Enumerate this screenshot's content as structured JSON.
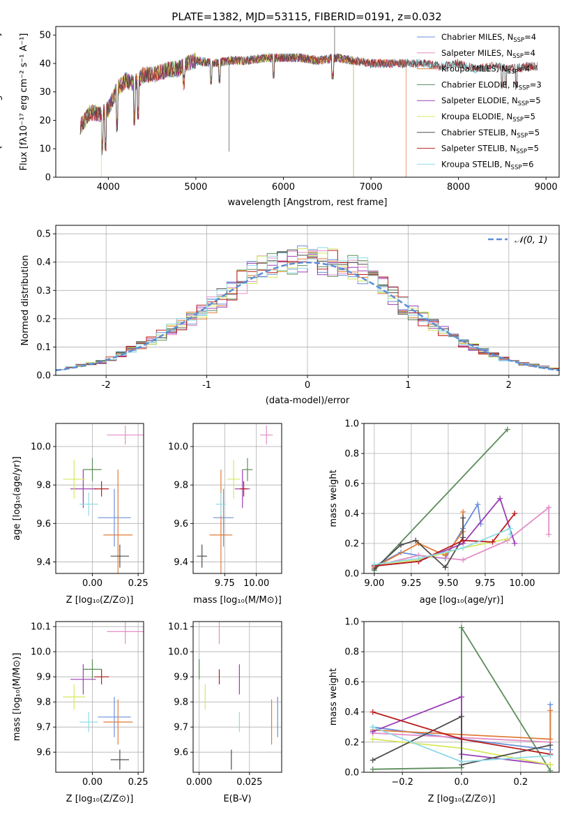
{
  "title": "PLATE=1382, MJD=53115, FIBERID=0191, z=0.032",
  "colors": {
    "Chabrier MILES": "#6a8fd8",
    "Salpeter MILES": "#e38ec6",
    "Kroupa MILES": "#e07b39",
    "Chabrier ELODIE": "#5b8c5a",
    "Salpeter ELODIE": "#9b3fb5",
    "Kroupa ELODIE": "#d6e85c",
    "Chabrier STELIB": "#4d4d4d",
    "Salpeter STELIB": "#b81c1c",
    "Kroupa STELIB": "#8fdbe6"
  },
  "chart_data": [
    {
      "type": "line",
      "panel": "spectrum",
      "title": "PLATE=1382, MJD=53115, FIBERID=0191, z=0.032",
      "xlabel": "wavelength [Angstrom, rest frame]",
      "ylabel": "Flux [fλ10⁻¹⁷ erg cm⁻² s⁻¹ A⁻¹]",
      "xlim": [
        3400,
        9150
      ],
      "ylim": [
        0,
        53
      ],
      "xticks": [
        4000,
        5000,
        6000,
        7000,
        8000,
        9000
      ],
      "yticks": [
        0,
        10,
        20,
        30,
        40,
        50
      ],
      "legend_position": "top-right",
      "legend": [
        {
          "base": "Chabrier MILES, N",
          "sub": "SSP",
          "tail": "=4"
        },
        {
          "base": "Salpeter MILES, N",
          "sub": "SSP",
          "tail": "=4"
        },
        {
          "base": "Kroupa MILES, N",
          "sub": "SSP",
          "tail": "=4"
        },
        {
          "base": "Chabrier ELODIE, N",
          "sub": "SSP",
          "tail": "=3"
        },
        {
          "base": "Salpeter ELODIE, N",
          "sub": "SSP",
          "tail": "=5"
        },
        {
          "base": "Kroupa ELODIE, N",
          "sub": "SSP",
          "tail": "=5"
        },
        {
          "base": "Chabrier STELIB, N",
          "sub": "SSP",
          "tail": "=5"
        },
        {
          "base": "Salpeter STELIB, N",
          "sub": "SSP",
          "tail": "=5"
        },
        {
          "base": "Kroupa STELIB, N",
          "sub": "SSP",
          "tail": "=6"
        }
      ],
      "continuum": {
        "x": [
          3680,
          3800,
          3900,
          4000,
          4100,
          4200,
          4300,
          4400,
          4500,
          4600,
          4700,
          4800,
          4900,
          5000,
          5200,
          5400,
          5600,
          5800,
          6000,
          6200,
          6400,
          6600,
          6800,
          7000,
          7200,
          7400,
          7600,
          7800,
          8000,
          8200,
          8400,
          8600,
          8800,
          8900
        ],
        "y": [
          18,
          23,
          22,
          24,
          31,
          34,
          33,
          36,
          36,
          37,
          38,
          38,
          40,
          41,
          40,
          41,
          41,
          42,
          42,
          42,
          41,
          42,
          41,
          40,
          40,
          40,
          40,
          39,
          40,
          38,
          39,
          38,
          39,
          39
        ]
      },
      "spectrum_ranges": {
        "MILES": [
          3680,
          7400
        ],
        "ELODIE": [
          3680,
          6800
        ],
        "STELIB": [
          3680,
          8900
        ]
      }
    },
    {
      "type": "bar",
      "panel": "residual-histogram",
      "xlabel": "(data-model)/error",
      "ylabel": "Normed distribution",
      "xlim": [
        -2.5,
        2.5
      ],
      "ylim": [
        0,
        0.53
      ],
      "xticks": [
        -2,
        -1,
        0,
        1,
        2
      ],
      "yticks": [
        0.0,
        0.1,
        0.2,
        0.3,
        0.4,
        0.5
      ],
      "legend_position": "top-right",
      "legend": [
        "𝒩(0, 1)"
      ],
      "reference_curve": {
        "name": "𝒩(0, 1)",
        "mean": 0,
        "sigma": 1,
        "style": "dashed"
      },
      "bin_width": 0.1,
      "histogram_envelope": {
        "x": [
          -2.5,
          -2.0,
          -1.5,
          -1.0,
          -0.5,
          0.0,
          0.5,
          1.0,
          1.5,
          2.0,
          2.5
        ],
        "y": [
          0.02,
          0.05,
          0.13,
          0.23,
          0.37,
          0.41,
          0.38,
          0.23,
          0.12,
          0.05,
          0.02
        ]
      }
    },
    {
      "type": "scatter",
      "panel": "age-vs-Z",
      "xlabel": "Z [log₁₀(Z/Z⊙)]",
      "ylabel": "age  [log₁₀(age/yr)]",
      "xlim": [
        -0.2,
        0.28
      ],
      "ylim": [
        9.34,
        10.12
      ],
      "xticks": [
        0.0,
        0.25
      ],
      "xticklabels": [
        "0.00",
        "0.25"
      ],
      "yticks": [
        9.4,
        9.6,
        9.8,
        10.0
      ],
      "points": [
        {
          "model": "Chabrier MILES",
          "x": 0.12,
          "y": 9.63,
          "xerr": 0.09,
          "yerr": 0.15
        },
        {
          "model": "Salpeter MILES",
          "x": 0.18,
          "y": 10.06,
          "xerr": 0.1,
          "yerr": 0.05
        },
        {
          "model": "Kroupa MILES",
          "x": 0.14,
          "y": 9.54,
          "xerr": 0.08,
          "yerr": 0.34
        },
        {
          "model": "Chabrier ELODIE",
          "x": 0.0,
          "y": 9.88,
          "xerr": 0.05,
          "yerr": 0.06
        },
        {
          "model": "Salpeter ELODIE",
          "x": -0.05,
          "y": 9.78,
          "xerr": 0.07,
          "yerr": 0.1
        },
        {
          "model": "Kroupa ELODIE",
          "x": -0.1,
          "y": 9.83,
          "xerr": 0.06,
          "yerr": 0.1
        },
        {
          "model": "Chabrier STELIB",
          "x": 0.15,
          "y": 9.43,
          "xerr": 0.05,
          "yerr": 0.06
        },
        {
          "model": "Salpeter STELIB",
          "x": 0.05,
          "y": 9.78,
          "xerr": 0.04,
          "yerr": 0.04
        },
        {
          "model": "Kroupa STELIB",
          "x": -0.02,
          "y": 9.7,
          "xerr": 0.05,
          "yerr": 0.06
        }
      ]
    },
    {
      "type": "scatter",
      "panel": "age-vs-mass",
      "xlabel": "mass [log₁₀(M/M⊙)]",
      "xlim": [
        9.5,
        10.2
      ],
      "ylim": [
        9.34,
        10.12
      ],
      "xticks": [
        9.75,
        10.0
      ],
      "xticklabels": [
        "9.75",
        "10.00"
      ],
      "yticks": [
        9.4,
        9.6,
        9.8,
        10.0
      ],
      "points": [
        {
          "model": "Chabrier MILES",
          "x": 9.74,
          "y": 9.63,
          "xerr": 0.08,
          "yerr": 0.15
        },
        {
          "model": "Salpeter MILES",
          "x": 10.08,
          "y": 10.06,
          "xerr": 0.05,
          "yerr": 0.05
        },
        {
          "model": "Kroupa MILES",
          "x": 9.72,
          "y": 9.54,
          "xerr": 0.09,
          "yerr": 0.34
        },
        {
          "model": "Chabrier ELODIE",
          "x": 9.93,
          "y": 9.88,
          "xerr": 0.04,
          "yerr": 0.06
        },
        {
          "model": "Salpeter ELODIE",
          "x": 9.89,
          "y": 9.78,
          "xerr": 0.06,
          "yerr": 0.1
        },
        {
          "model": "Kroupa ELODIE",
          "x": 9.82,
          "y": 9.83,
          "xerr": 0.05,
          "yerr": 0.1
        },
        {
          "model": "Chabrier STELIB",
          "x": 9.57,
          "y": 9.43,
          "xerr": 0.04,
          "yerr": 0.06
        },
        {
          "model": "Salpeter STELIB",
          "x": 9.9,
          "y": 9.78,
          "xerr": 0.03,
          "yerr": 0.04
        },
        {
          "model": "Kroupa STELIB",
          "x": 9.72,
          "y": 9.7,
          "xerr": 0.04,
          "yerr": 0.06
        }
      ]
    },
    {
      "type": "line",
      "panel": "mass-weight-vs-age",
      "xlabel": "age  [log₁₀(age/yr)]",
      "ylabel": "mass weight",
      "xlim": [
        8.93,
        10.25
      ],
      "ylim": [
        0,
        1.0
      ],
      "xticks": [
        9.0,
        9.25,
        9.5,
        9.75,
        10.0
      ],
      "xticklabels": [
        "9.00",
        "9.25",
        "9.50",
        "9.75",
        "10.00"
      ],
      "yticks": [
        0.0,
        0.2,
        0.4,
        0.6,
        0.8,
        1.0
      ],
      "series": [
        {
          "model": "Chabrier MILES",
          "x": [
            9.0,
            9.18,
            9.3,
            9.48,
            9.6,
            9.7,
            9.72
          ],
          "y": [
            0.05,
            0.14,
            0.12,
            0.1,
            0.3,
            0.46,
            0.33
          ]
        },
        {
          "model": "Salpeter MILES",
          "x": [
            9.0,
            9.3,
            9.6,
            9.9,
            10.18,
            10.18
          ],
          "y": [
            0.05,
            0.12,
            0.09,
            0.22,
            0.44,
            0.26
          ]
        },
        {
          "model": "Kroupa MILES",
          "x": [
            9.0,
            9.3,
            9.48,
            9.6,
            9.6
          ],
          "y": [
            0.04,
            0.2,
            0.12,
            0.28,
            0.41
          ]
        },
        {
          "model": "Chabrier ELODIE",
          "x": [
            9.0,
            9.9
          ],
          "y": [
            0.02,
            0.96
          ]
        },
        {
          "model": "Salpeter ELODIE",
          "x": [
            9.0,
            9.3,
            9.6,
            9.85,
            9.95
          ],
          "y": [
            0.05,
            0.08,
            0.2,
            0.5,
            0.2
          ]
        },
        {
          "model": "Kroupa ELODIE",
          "x": [
            9.0,
            9.3,
            9.6,
            9.9
          ],
          "y": [
            0.06,
            0.09,
            0.17,
            0.23
          ]
        },
        {
          "model": "Chabrier STELIB",
          "x": [
            9.0,
            9.18,
            9.28,
            9.48,
            9.6,
            9.6
          ],
          "y": [
            0.03,
            0.19,
            0.22,
            0.04,
            0.24,
            0.37
          ]
        },
        {
          "model": "Salpeter STELIB",
          "x": [
            9.0,
            9.3,
            9.6,
            9.8,
            9.95
          ],
          "y": [
            0.05,
            0.08,
            0.22,
            0.21,
            0.4
          ]
        },
        {
          "model": "Kroupa STELIB",
          "x": [
            9.0,
            9.3,
            9.6,
            9.92,
            9.92
          ],
          "y": [
            0.06,
            0.1,
            0.17,
            0.3,
            0.26
          ]
        }
      ]
    },
    {
      "type": "scatter",
      "panel": "mass-vs-Z",
      "xlabel": "Z [log₁₀(Z/Z⊙)]",
      "ylabel": "mass [log₁₀(M/M⊙)]",
      "xlim": [
        -0.2,
        0.28
      ],
      "ylim": [
        9.52,
        10.12
      ],
      "xticks": [
        0.0,
        0.25
      ],
      "xticklabels": [
        "0.00",
        "0.25"
      ],
      "yticks": [
        9.6,
        9.7,
        9.8,
        9.9,
        10.0,
        10.1
      ],
      "points": [
        {
          "model": "Chabrier MILES",
          "x": 0.12,
          "y": 9.74,
          "xerr": 0.09,
          "yerr": 0.08
        },
        {
          "model": "Salpeter MILES",
          "x": 0.18,
          "y": 10.08,
          "xerr": 0.1,
          "yerr": 0.05
        },
        {
          "model": "Kroupa MILES",
          "x": 0.14,
          "y": 9.72,
          "xerr": 0.08,
          "yerr": 0.09
        },
        {
          "model": "Chabrier ELODIE",
          "x": 0.0,
          "y": 9.93,
          "xerr": 0.05,
          "yerr": 0.04
        },
        {
          "model": "Salpeter ELODIE",
          "x": -0.05,
          "y": 9.89,
          "xerr": 0.07,
          "yerr": 0.06
        },
        {
          "model": "Kroupa ELODIE",
          "x": -0.1,
          "y": 9.82,
          "xerr": 0.06,
          "yerr": 0.05
        },
        {
          "model": "Chabrier STELIB",
          "x": 0.15,
          "y": 9.57,
          "xerr": 0.05,
          "yerr": 0.04
        },
        {
          "model": "Salpeter STELIB",
          "x": 0.05,
          "y": 9.9,
          "xerr": 0.04,
          "yerr": 0.03
        },
        {
          "model": "Kroupa STELIB",
          "x": -0.02,
          "y": 9.72,
          "xerr": 0.05,
          "yerr": 0.04
        }
      ]
    },
    {
      "type": "scatter",
      "panel": "mass-vs-EBV",
      "xlabel": "E(B-V)",
      "xlim": [
        -0.003,
        0.041
      ],
      "ylim": [
        9.52,
        10.12
      ],
      "xticks": [
        0.0,
        0.025
      ],
      "xticklabels": [
        "0.000",
        "0.025"
      ],
      "yticks": [
        9.6,
        9.7,
        9.8,
        9.9,
        10.0,
        10.1
      ],
      "points": [
        {
          "model": "Chabrier MILES",
          "x": 0.039,
          "y": 9.74,
          "xerr": 0,
          "yerr": 0.08
        },
        {
          "model": "Salpeter MILES",
          "x": 0.01,
          "y": 10.08,
          "xerr": 0,
          "yerr": 0.05
        },
        {
          "model": "Kroupa MILES",
          "x": 0.036,
          "y": 9.72,
          "xerr": 0,
          "yerr": 0.09
        },
        {
          "model": "Chabrier ELODIE",
          "x": 0.0,
          "y": 9.93,
          "xerr": 0,
          "yerr": 0.04
        },
        {
          "model": "Salpeter ELODIE",
          "x": 0.02,
          "y": 9.89,
          "xerr": 0,
          "yerr": 0.06
        },
        {
          "model": "Kroupa ELODIE",
          "x": 0.003,
          "y": 9.82,
          "xerr": 0,
          "yerr": 0.05
        },
        {
          "model": "Chabrier STELIB",
          "x": 0.016,
          "y": 9.57,
          "xerr": 0,
          "yerr": 0.04
        },
        {
          "model": "Salpeter STELIB",
          "x": 0.01,
          "y": 9.9,
          "xerr": 0,
          "yerr": 0.03
        },
        {
          "model": "Kroupa STELIB",
          "x": 0.02,
          "y": 9.72,
          "xerr": 0,
          "yerr": 0.04
        }
      ]
    },
    {
      "type": "line",
      "panel": "mass-weight-vs-Z",
      "xlabel": "Z [log₁₀(Z/Z⊙)]",
      "ylabel": "mass weight",
      "xlim": [
        -0.33,
        0.33
      ],
      "ylim": [
        0,
        1.0
      ],
      "xticks": [
        -0.2,
        0.0,
        0.2
      ],
      "xticklabels": [
        "−0.2",
        "0.0",
        "0.2"
      ],
      "yticks": [
        0.0,
        0.2,
        0.4,
        0.6,
        0.8,
        1.0
      ],
      "series": [
        {
          "model": "Chabrier MILES",
          "x": [
            -0.3,
            0.0,
            0.3,
            0.3
          ],
          "y": [
            0.3,
            0.22,
            0.15,
            0.45
          ]
        },
        {
          "model": "Salpeter MILES",
          "x": [
            -0.3,
            0.0,
            0.3
          ],
          "y": [
            0.26,
            0.23,
            0.2
          ]
        },
        {
          "model": "Kroupa MILES",
          "x": [
            -0.3,
            0.0,
            0.3,
            0.3
          ],
          "y": [
            0.28,
            0.25,
            0.22,
            0.41
          ]
        },
        {
          "model": "Chabrier ELODIE",
          "x": [
            -0.3,
            0.0,
            0.0,
            0.3
          ],
          "y": [
            0.02,
            0.03,
            0.96,
            0.01
          ]
        },
        {
          "model": "Salpeter ELODIE",
          "x": [
            -0.3,
            0.0,
            0.0,
            0.3
          ],
          "y": [
            0.27,
            0.5,
            0.12,
            0.05
          ]
        },
        {
          "model": "Kroupa ELODIE",
          "x": [
            -0.3,
            0.0,
            0.3
          ],
          "y": [
            0.22,
            0.16,
            0.05
          ]
        },
        {
          "model": "Chabrier STELIB",
          "x": [
            -0.3,
            0.0,
            0.0,
            0.3
          ],
          "y": [
            0.08,
            0.37,
            0.05,
            0.18
          ]
        },
        {
          "model": "Salpeter STELIB",
          "x": [
            -0.3,
            0.0,
            0.3
          ],
          "y": [
            0.4,
            0.22,
            0.12
          ]
        },
        {
          "model": "Kroupa STELIB",
          "x": [
            -0.3,
            0.0,
            0.3
          ],
          "y": [
            0.3,
            0.07,
            0.11
          ]
        }
      ]
    }
  ]
}
